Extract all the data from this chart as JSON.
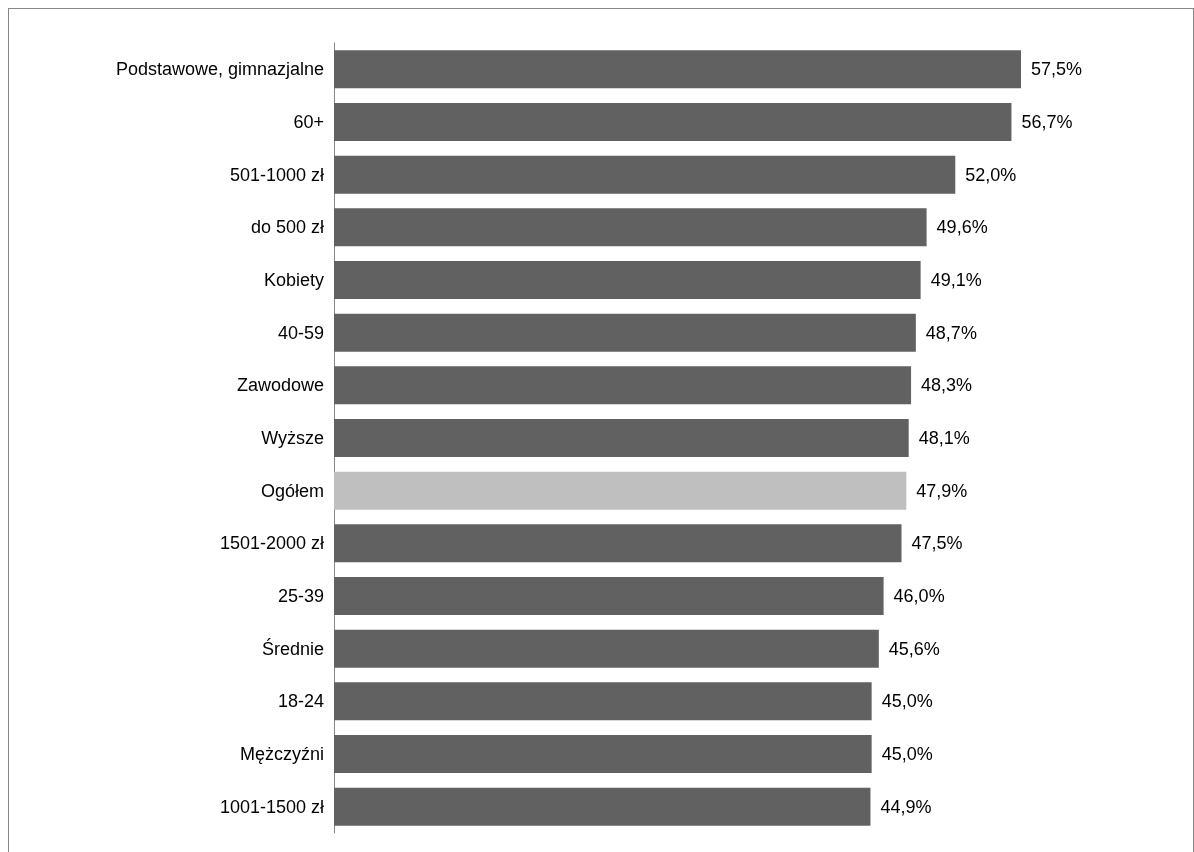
{
  "chart_data": {
    "type": "bar",
    "orientation": "horizontal",
    "categories": [
      "Podstawowe, gimnazjalne",
      "60+",
      "501-1000 zł",
      "do 500 zł",
      "Kobiety",
      "40-59",
      "Zawodowe",
      "Wyższe",
      "Ogółem",
      "1501-2000 zł",
      "25-39",
      "Średnie",
      "18-24",
      "Mężczyźni",
      "1001-1500 zł"
    ],
    "values": [
      57.5,
      56.7,
      52.0,
      49.6,
      49.1,
      48.7,
      48.3,
      48.1,
      47.9,
      47.5,
      46.0,
      45.6,
      45.0,
      45.0,
      44.9
    ],
    "value_labels": [
      "57,5%",
      "56,7%",
      "52,0%",
      "49,6%",
      "49,1%",
      "48,7%",
      "48,3%",
      "48,1%",
      "47,9%",
      "47,5%",
      "46,0%",
      "45,6%",
      "45,0%",
      "45,0%",
      "44,9%"
    ],
    "colors": [
      "#616161",
      "#616161",
      "#616161",
      "#616161",
      "#616161",
      "#616161",
      "#616161",
      "#616161",
      "#bfbfbf",
      "#616161",
      "#616161",
      "#616161",
      "#616161",
      "#616161",
      "#616161"
    ]
  }
}
